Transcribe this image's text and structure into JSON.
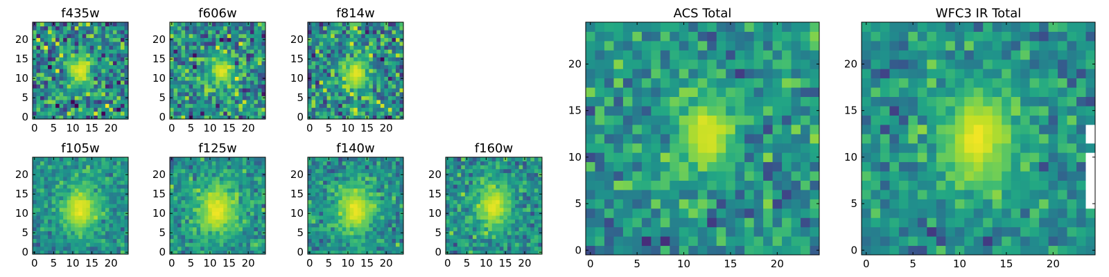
{
  "figure": {
    "colormap": "viridis",
    "background": "#ffffff",
    "text_color": "#000000"
  },
  "chart_data": [
    {
      "type": "heatmap",
      "title": "f435w",
      "shape": [
        25,
        25
      ],
      "xlim": [
        0,
        24
      ],
      "ylim": [
        0,
        24
      ],
      "xticks": [
        "0",
        "5",
        "10",
        "15",
        "20"
      ],
      "yticks": [
        "0",
        "5",
        "10",
        "15",
        "20"
      ],
      "source_center": [
        12,
        12
      ],
      "source_sigma": [
        2.3,
        3.0
      ],
      "noise": 0.38
    },
    {
      "type": "heatmap",
      "title": "f606w",
      "shape": [
        25,
        25
      ],
      "xlim": [
        0,
        24
      ],
      "ylim": [
        0,
        24
      ],
      "xticks": [
        "0",
        "5",
        "10",
        "15",
        "20"
      ],
      "yticks": [
        "0",
        "5",
        "10",
        "15",
        "20"
      ],
      "source_center": [
        13,
        12
      ],
      "source_sigma": [
        2.2,
        2.8
      ],
      "noise": 0.34
    },
    {
      "type": "heatmap",
      "title": "f814w",
      "shape": [
        25,
        25
      ],
      "xlim": [
        0,
        24
      ],
      "ylim": [
        0,
        24
      ],
      "xticks": [
        "0",
        "5",
        "10",
        "15",
        "20"
      ],
      "yticks": [
        "0",
        "5",
        "10",
        "15",
        "20"
      ],
      "source_center": [
        12,
        11
      ],
      "source_sigma": [
        2.5,
        3.2
      ],
      "noise": 0.34
    },
    {
      "type": "heatmap",
      "title": "f105w",
      "shape": [
        25,
        25
      ],
      "xlim": [
        0,
        24
      ],
      "ylim": [
        0,
        24
      ],
      "xticks": [
        "0",
        "5",
        "10",
        "15",
        "20"
      ],
      "yticks": [
        "0",
        "5",
        "10",
        "15",
        "20"
      ],
      "source_center": [
        12,
        11
      ],
      "source_sigma": [
        3.5,
        4.5
      ],
      "noise": 0.2
    },
    {
      "type": "heatmap",
      "title": "f125w",
      "shape": [
        25,
        25
      ],
      "xlim": [
        0,
        24
      ],
      "ylim": [
        0,
        24
      ],
      "xticks": [
        "0",
        "5",
        "10",
        "15",
        "20"
      ],
      "yticks": [
        "0",
        "5",
        "10",
        "15",
        "20"
      ],
      "source_center": [
        12,
        11
      ],
      "source_sigma": [
        4,
        5
      ],
      "noise": 0.22
    },
    {
      "type": "heatmap",
      "title": "f140w",
      "shape": [
        25,
        25
      ],
      "xlim": [
        0,
        24
      ],
      "ylim": [
        0,
        24
      ],
      "xticks": [
        "0",
        "5",
        "10",
        "15",
        "20"
      ],
      "yticks": [
        "0",
        "5",
        "10",
        "15",
        "20"
      ],
      "source_center": [
        12,
        11
      ],
      "source_sigma": [
        3.5,
        4.5
      ],
      "noise": 0.22
    },
    {
      "type": "heatmap",
      "title": "f160w",
      "shape": [
        25,
        25
      ],
      "xlim": [
        0,
        24
      ],
      "ylim": [
        0,
        24
      ],
      "xticks": [
        "0",
        "5",
        "10",
        "15",
        "20"
      ],
      "yticks": [
        "0",
        "5",
        "10",
        "15",
        "20"
      ],
      "source_center": [
        12,
        12
      ],
      "source_sigma": [
        3.2,
        4.2
      ],
      "noise": 0.24
    },
    {
      "type": "heatmap",
      "title": "ACS Total",
      "shape": [
        25,
        25
      ],
      "xlim": [
        0,
        24
      ],
      "ylim": [
        0,
        24
      ],
      "xticks": [
        "0",
        "5",
        "10",
        "15",
        "20"
      ],
      "yticks": [
        "0",
        "5",
        "10",
        "15",
        "20"
      ],
      "source_center": [
        12.5,
        12.5
      ],
      "source_sigma": [
        2.3,
        3.0
      ],
      "noise": 0.26
    },
    {
      "type": "heatmap",
      "title": "WFC3 IR Total",
      "shape": [
        25,
        25
      ],
      "xlim": [
        0,
        24
      ],
      "ylim": [
        0,
        24
      ],
      "xticks": [
        "0",
        "5",
        "10",
        "15",
        "20"
      ],
      "yticks": [
        "0",
        "5",
        "10",
        "15",
        "20"
      ],
      "source_center": [
        12,
        12
      ],
      "source_sigma": [
        3.0,
        4.0
      ],
      "noise": 0.22,
      "masked_pixels": "right edge, rows 5-13"
    }
  ]
}
